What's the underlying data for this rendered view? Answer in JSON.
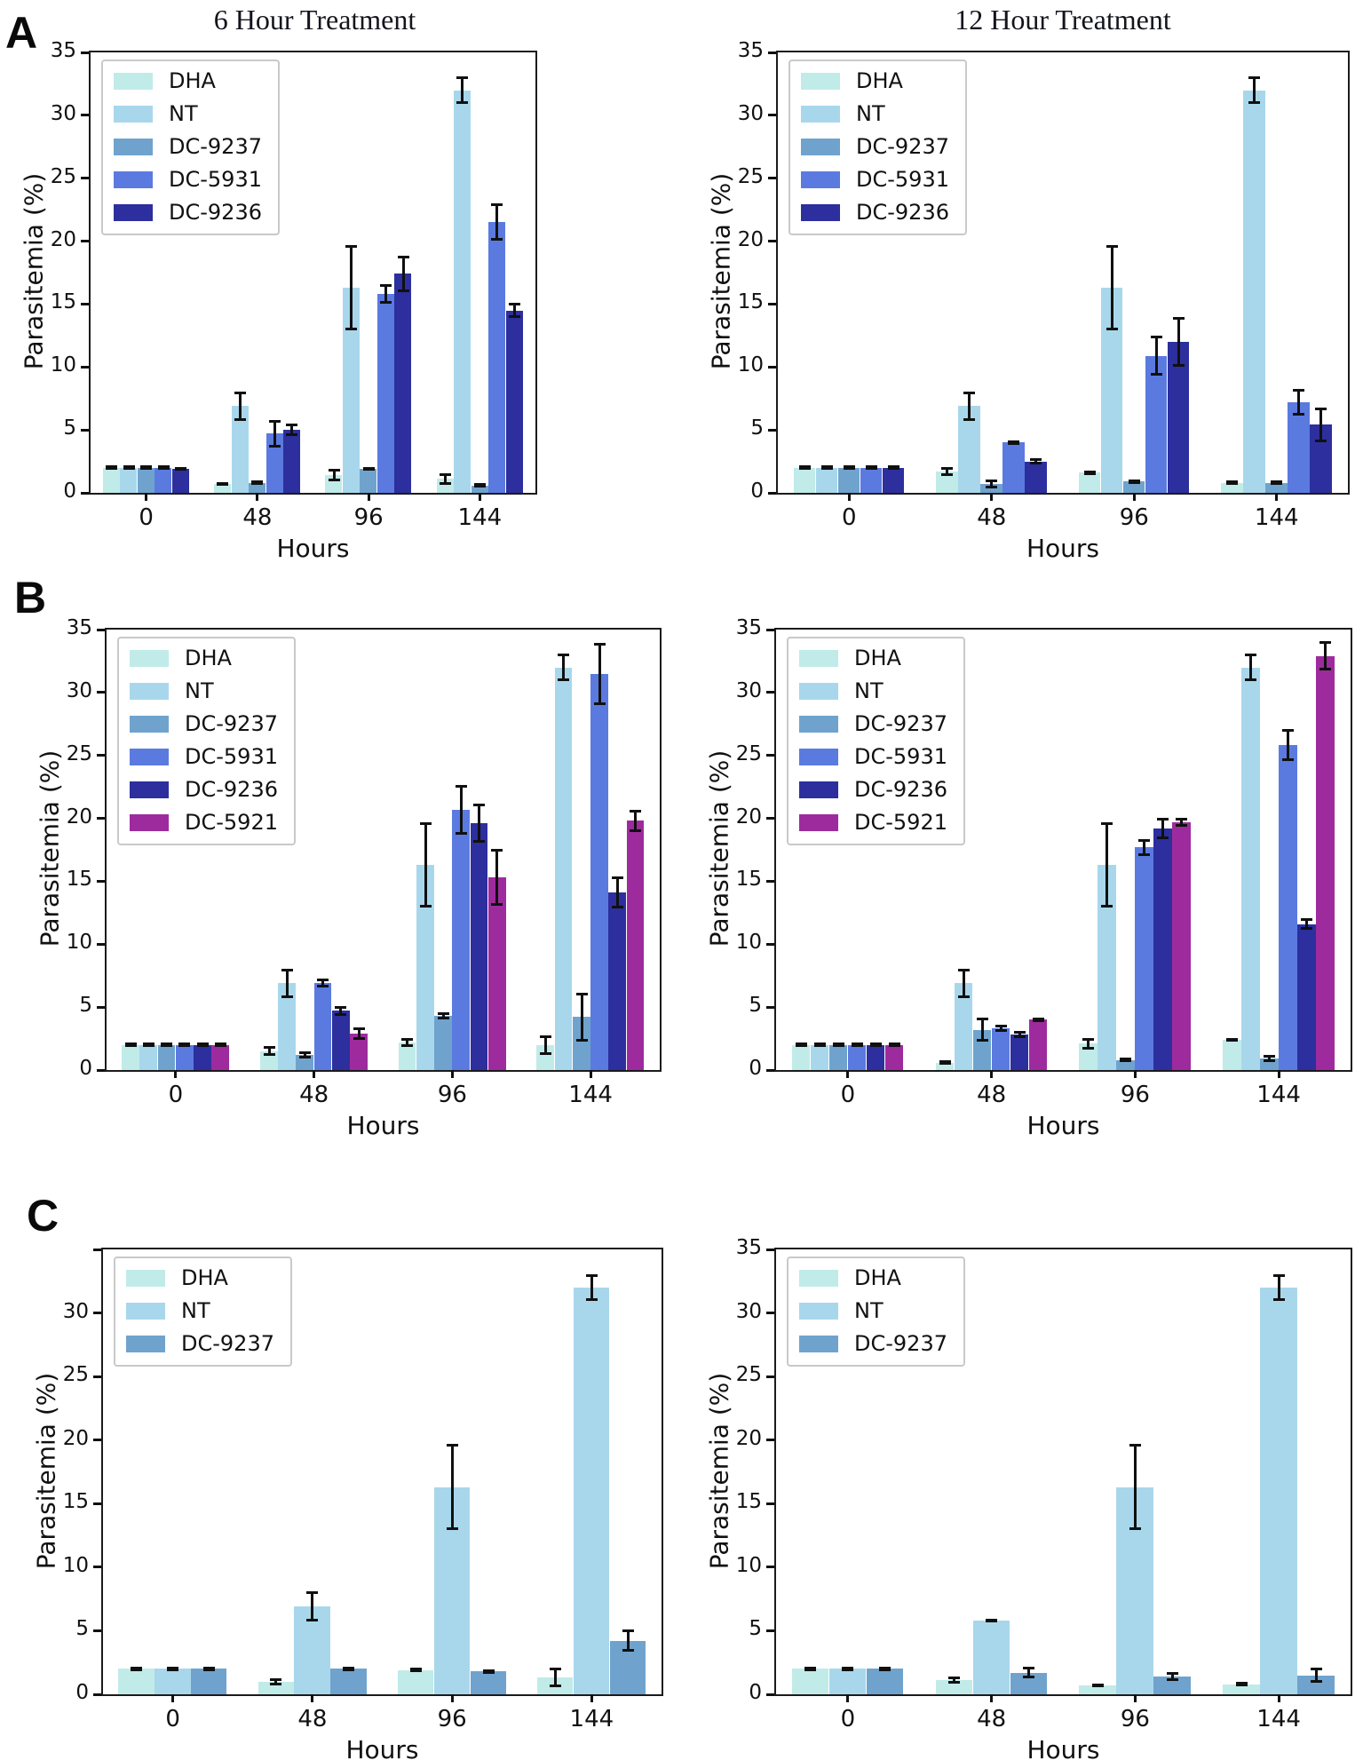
{
  "figure": {
    "panels": [
      {
        "label": "A"
      },
      {
        "label": "B"
      },
      {
        "label": "C"
      }
    ],
    "col_titles": [
      "6 Hour Treatment",
      "12 Hour Treatment"
    ]
  },
  "series_colors": {
    "DHA": "#c0ebe9",
    "NT": "#a8d7ec",
    "DC-9237": "#6fa3cd",
    "DC-5931": "#5b7ae0",
    "DC-9236": "#2c2f9d",
    "DC-5921": "#9e2b9d"
  },
  "chart_data": [
    {
      "id": "panel-A-6-hour",
      "panel": "A",
      "type": "bar",
      "title": "6 Hour Treatment",
      "xlabel": "Hours",
      "ylabel": "Parasitemia (%)",
      "categories": [
        "0",
        "48",
        "96",
        "144"
      ],
      "ylim": [
        0,
        35
      ],
      "ytick_labels": [
        "0",
        "5",
        "10",
        "15",
        "20",
        "25",
        "30",
        "35"
      ],
      "legend_position": "upper-left",
      "grid": false,
      "series": [
        {
          "name": "DHA",
          "values": [
            2.0,
            0.7,
            1.4,
            1.1
          ],
          "errors": [
            0.1,
            0.1,
            0.4,
            0.4
          ]
        },
        {
          "name": "NT",
          "values": [
            2.0,
            6.9,
            16.3,
            32.0
          ],
          "errors": [
            0.1,
            1.1,
            3.3,
            1.0
          ]
        },
        {
          "name": "DC-9237",
          "values": [
            2.0,
            0.8,
            1.9,
            0.6
          ],
          "errors": [
            0.1,
            0.1,
            0.1,
            0.1
          ]
        },
        {
          "name": "DC-5931",
          "values": [
            2.0,
            4.7,
            15.8,
            21.5
          ],
          "errors": [
            0.1,
            1.0,
            0.7,
            1.4
          ]
        },
        {
          "name": "DC-9236",
          "values": [
            1.9,
            5.0,
            17.4,
            14.5
          ],
          "errors": [
            0.1,
            0.4,
            1.4,
            0.5
          ]
        }
      ]
    },
    {
      "id": "panel-A-12-hour",
      "panel": "A",
      "type": "bar",
      "title": "12 Hour Treatment",
      "xlabel": "Hours",
      "ylabel": "Parasitemia (%)",
      "categories": [
        "0",
        "48",
        "96",
        "144"
      ],
      "ylim": [
        0,
        35
      ],
      "ytick_labels": [
        "0",
        "5",
        "10",
        "15",
        "20",
        "25",
        "30",
        "35"
      ],
      "legend_position": "upper-left",
      "grid": false,
      "series": [
        {
          "name": "DHA",
          "values": [
            2.0,
            1.7,
            1.6,
            0.8
          ],
          "errors": [
            0.1,
            0.3,
            0.1,
            0.1
          ]
        },
        {
          "name": "NT",
          "values": [
            2.0,
            6.9,
            16.3,
            32.0
          ],
          "errors": [
            0.1,
            1.1,
            3.3,
            1.0
          ]
        },
        {
          "name": "DC-9237",
          "values": [
            2.0,
            0.7,
            0.9,
            0.8
          ],
          "errors": [
            0.1,
            0.3,
            0.1,
            0.1
          ]
        },
        {
          "name": "DC-5931",
          "values": [
            2.0,
            4.0,
            10.9,
            7.2
          ],
          "errors": [
            0.1,
            0.1,
            1.5,
            1.0
          ]
        },
        {
          "name": "DC-9236",
          "values": [
            2.0,
            2.5,
            12.0,
            5.4
          ],
          "errors": [
            0.1,
            0.2,
            1.9,
            1.3
          ]
        }
      ]
    },
    {
      "id": "panel-B-6-hour",
      "panel": "B",
      "type": "bar",
      "title": "",
      "xlabel": "Hours",
      "ylabel": "Parasitemia (%)",
      "categories": [
        "0",
        "48",
        "96",
        "144"
      ],
      "ylim": [
        0,
        35
      ],
      "ytick_labels": [
        "0",
        "5",
        "10",
        "15",
        "20",
        "25",
        "30",
        "35"
      ],
      "legend_position": "upper-left",
      "grid": false,
      "series": [
        {
          "name": "DHA",
          "values": [
            2.0,
            1.5,
            2.2,
            2.0
          ],
          "errors": [
            0.1,
            0.3,
            0.3,
            0.7
          ]
        },
        {
          "name": "NT",
          "values": [
            2.0,
            6.9,
            16.3,
            32.0
          ],
          "errors": [
            0.1,
            1.1,
            3.3,
            1.0
          ]
        },
        {
          "name": "DC-9237",
          "values": [
            2.0,
            1.2,
            4.3,
            4.2
          ],
          "errors": [
            0.1,
            0.2,
            0.2,
            1.9
          ]
        },
        {
          "name": "DC-5931",
          "values": [
            2.0,
            6.9,
            20.7,
            31.5
          ],
          "errors": [
            0.1,
            0.3,
            1.9,
            2.4
          ]
        },
        {
          "name": "DC-9236",
          "values": [
            2.0,
            4.7,
            19.6,
            14.1
          ],
          "errors": [
            0.1,
            0.3,
            1.5,
            1.2
          ]
        },
        {
          "name": "DC-5921",
          "values": [
            2.0,
            2.9,
            15.3,
            19.8
          ],
          "errors": [
            0.1,
            0.4,
            2.2,
            0.8
          ]
        }
      ]
    },
    {
      "id": "panel-B-12-hour",
      "panel": "B",
      "type": "bar",
      "title": "",
      "xlabel": "Hours",
      "ylabel": "Parasitemia (%)",
      "categories": [
        "0",
        "48",
        "96",
        "144"
      ],
      "ylim": [
        0,
        35
      ],
      "ytick_labels": [
        "0",
        "5",
        "10",
        "15",
        "20",
        "25",
        "30",
        "35"
      ],
      "legend_position": "upper-left",
      "grid": false,
      "series": [
        {
          "name": "DHA",
          "values": [
            2.0,
            0.6,
            2.1,
            2.4
          ],
          "errors": [
            0.1,
            0.1,
            0.4,
            0.1
          ]
        },
        {
          "name": "NT",
          "values": [
            2.0,
            6.9,
            16.3,
            32.0
          ],
          "errors": [
            0.1,
            1.1,
            3.3,
            1.0
          ]
        },
        {
          "name": "DC-9237",
          "values": [
            2.0,
            3.2,
            0.8,
            0.9
          ],
          "errors": [
            0.1,
            0.9,
            0.1,
            0.2
          ]
        },
        {
          "name": "DC-5931",
          "values": [
            2.0,
            3.3,
            17.7,
            25.8
          ],
          "errors": [
            0.1,
            0.2,
            0.6,
            1.2
          ]
        },
        {
          "name": "DC-9236",
          "values": [
            2.0,
            2.8,
            19.2,
            11.6
          ],
          "errors": [
            0.1,
            0.2,
            0.8,
            0.4
          ]
        },
        {
          "name": "DC-5921",
          "values": [
            2.0,
            4.0,
            19.7,
            32.9
          ],
          "errors": [
            0.1,
            0.1,
            0.3,
            1.1
          ]
        }
      ]
    },
    {
      "id": "panel-C-6-hour",
      "panel": "C",
      "type": "bar",
      "title": "",
      "xlabel": "Hours",
      "ylabel": "Parasitemia (%)",
      "categories": [
        "0",
        "48",
        "96",
        "144"
      ],
      "ylim": [
        0,
        35
      ],
      "ytick_labels": [
        "0",
        "5",
        "10",
        "15",
        "20",
        "25",
        "30"
      ],
      "legend_position": "upper-left",
      "grid": false,
      "series": [
        {
          "name": "DHA",
          "values": [
            2.0,
            1.0,
            1.9,
            1.3
          ],
          "errors": [
            0.1,
            0.2,
            0.1,
            0.7
          ]
        },
        {
          "name": "NT",
          "values": [
            2.0,
            6.9,
            16.3,
            32.0
          ],
          "errors": [
            0.1,
            1.1,
            3.3,
            1.0
          ]
        },
        {
          "name": "DC-9237",
          "values": [
            2.0,
            2.0,
            1.8,
            4.2
          ],
          "errors": [
            0.1,
            0.1,
            0.1,
            0.8
          ]
        }
      ]
    },
    {
      "id": "panel-C-12-hour",
      "panel": "C",
      "type": "bar",
      "title": "",
      "xlabel": "Hours",
      "ylabel": "Parasitemia (%)",
      "categories": [
        "0",
        "48",
        "96",
        "144"
      ],
      "ylim": [
        0,
        35
      ],
      "ytick_labels": [
        "0",
        "5",
        "10",
        "15",
        "20",
        "25",
        "30",
        "35"
      ],
      "legend_position": "upper-left",
      "grid": false,
      "series": [
        {
          "name": "DHA",
          "values": [
            2.0,
            1.1,
            0.7,
            0.8
          ],
          "errors": [
            0.1,
            0.2,
            0.1,
            0.1
          ]
        },
        {
          "name": "NT",
          "values": [
            2.0,
            5.8,
            16.3,
            32.0
          ],
          "errors": [
            0.1,
            0.1,
            3.3,
            1.0
          ]
        },
        {
          "name": "DC-9237",
          "values": [
            2.0,
            1.7,
            1.4,
            1.5
          ],
          "errors": [
            0.1,
            0.4,
            0.3,
            0.5
          ]
        }
      ]
    }
  ]
}
